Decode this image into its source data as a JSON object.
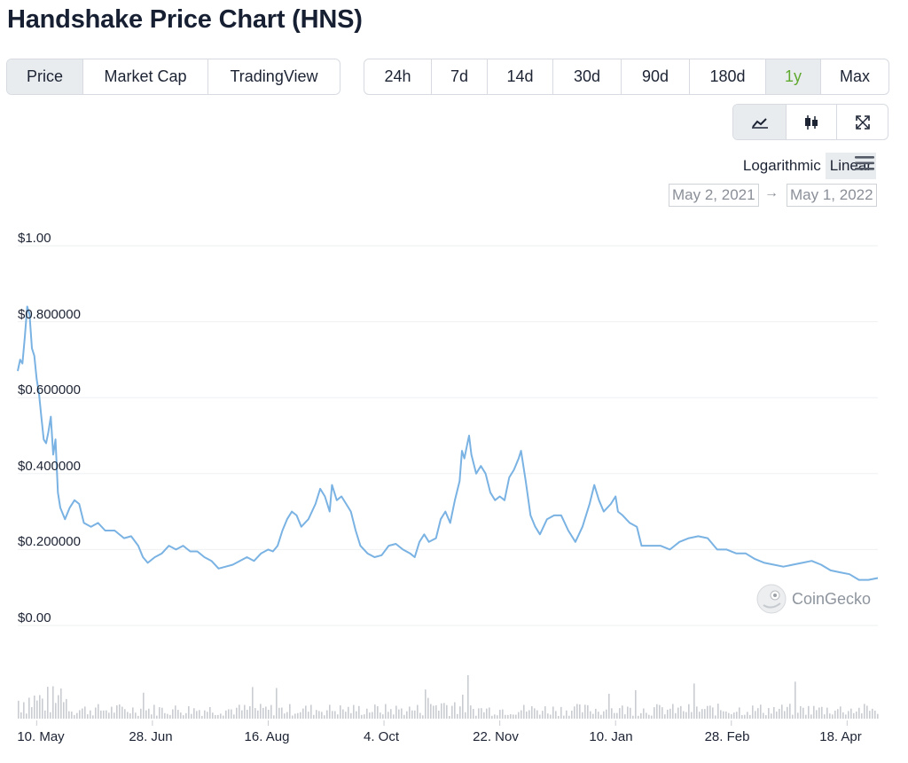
{
  "header": {
    "title": "Handshake Price Chart (HNS)"
  },
  "view_tabs": [
    {
      "label": "Price",
      "active": true
    },
    {
      "label": "Market Cap",
      "active": false
    },
    {
      "label": "TradingView",
      "active": false
    }
  ],
  "range_tabs": [
    {
      "label": "24h"
    },
    {
      "label": "7d"
    },
    {
      "label": "14d"
    },
    {
      "label": "30d"
    },
    {
      "label": "90d"
    },
    {
      "label": "180d"
    },
    {
      "label": "1y",
      "active": true
    },
    {
      "label": "Max"
    }
  ],
  "chart_type_buttons": [
    {
      "icon": "line-chart-icon",
      "active": true
    },
    {
      "icon": "candlestick-icon",
      "active": false
    },
    {
      "icon": "expand-icon",
      "active": false
    }
  ],
  "scale": {
    "log_label": "Logarithmic",
    "linear_label": "Linear",
    "selected": "Linear"
  },
  "date_range": {
    "from": "May 2, 2021",
    "arrow": "→",
    "to": "May 1, 2022"
  },
  "watermark": {
    "text": "CoinGecko"
  },
  "colors": {
    "line": "#7ab3e3",
    "volume": "#c9ccd1",
    "grid": "#eef0f2",
    "active_green": "#5fa92f"
  },
  "chart_data": {
    "type": "line",
    "title": "",
    "xlabel": "",
    "ylabel": "",
    "ylim": [
      0,
      1.0
    ],
    "y_ticks": [
      "$1.00",
      "$0.800000",
      "$0.600000",
      "$0.400000",
      "$0.200000",
      "$0.00"
    ],
    "y_tick_values": [
      1.0,
      0.8,
      0.6,
      0.4,
      0.2,
      0.0
    ],
    "x_tick_labels": [
      "10. May",
      "28. Jun",
      "16. Aug",
      "4. Oct",
      "22. Nov",
      "10. Jan",
      "28. Feb",
      "18. Apr"
    ],
    "x_tick_dates": [
      "2021-05-10",
      "2021-06-28",
      "2021-08-16",
      "2021-10-04",
      "2021-11-22",
      "2022-01-10",
      "2022-02-28",
      "2022-04-18"
    ],
    "x_range": [
      "2021-05-02",
      "2022-05-01"
    ],
    "grid": true,
    "series": [
      {
        "price_points": [
          [
            "2021-05-02",
            0.67
          ],
          [
            "2021-05-03",
            0.7
          ],
          [
            "2021-05-04",
            0.69
          ],
          [
            "2021-05-05",
            0.76
          ],
          [
            "2021-05-06",
            0.84
          ],
          [
            "2021-05-07",
            0.82
          ],
          [
            "2021-05-08",
            0.73
          ],
          [
            "2021-05-09",
            0.71
          ],
          [
            "2021-05-10",
            0.65
          ],
          [
            "2021-05-11",
            0.61
          ],
          [
            "2021-05-12",
            0.55
          ],
          [
            "2021-05-13",
            0.49
          ],
          [
            "2021-05-14",
            0.48
          ],
          [
            "2021-05-15",
            0.51
          ],
          [
            "2021-05-16",
            0.55
          ],
          [
            "2021-05-17",
            0.45
          ],
          [
            "2021-05-18",
            0.49
          ],
          [
            "2021-05-19",
            0.35
          ],
          [
            "2021-05-20",
            0.31
          ],
          [
            "2021-05-22",
            0.28
          ],
          [
            "2021-05-24",
            0.31
          ],
          [
            "2021-05-26",
            0.33
          ],
          [
            "2021-05-28",
            0.32
          ],
          [
            "2021-05-30",
            0.27
          ],
          [
            "2021-06-02",
            0.26
          ],
          [
            "2021-06-05",
            0.27
          ],
          [
            "2021-06-08",
            0.25
          ],
          [
            "2021-06-12",
            0.25
          ],
          [
            "2021-06-16",
            0.23
          ],
          [
            "2021-06-19",
            0.235
          ],
          [
            "2021-06-22",
            0.21
          ],
          [
            "2021-06-24",
            0.18
          ],
          [
            "2021-06-26",
            0.165
          ],
          [
            "2021-06-29",
            0.18
          ],
          [
            "2021-07-02",
            0.19
          ],
          [
            "2021-07-05",
            0.21
          ],
          [
            "2021-07-08",
            0.2
          ],
          [
            "2021-07-11",
            0.21
          ],
          [
            "2021-07-14",
            0.195
          ],
          [
            "2021-07-17",
            0.195
          ],
          [
            "2021-07-20",
            0.18
          ],
          [
            "2021-07-23",
            0.17
          ],
          [
            "2021-07-26",
            0.15
          ],
          [
            "2021-07-29",
            0.155
          ],
          [
            "2021-08-01",
            0.16
          ],
          [
            "2021-08-04",
            0.17
          ],
          [
            "2021-08-07",
            0.18
          ],
          [
            "2021-08-10",
            0.17
          ],
          [
            "2021-08-13",
            0.19
          ],
          [
            "2021-08-16",
            0.2
          ],
          [
            "2021-08-18",
            0.195
          ],
          [
            "2021-08-20",
            0.21
          ],
          [
            "2021-08-22",
            0.25
          ],
          [
            "2021-08-24",
            0.28
          ],
          [
            "2021-08-26",
            0.3
          ],
          [
            "2021-08-28",
            0.29
          ],
          [
            "2021-08-30",
            0.26
          ],
          [
            "2021-09-02",
            0.28
          ],
          [
            "2021-09-05",
            0.32
          ],
          [
            "2021-09-07",
            0.36
          ],
          [
            "2021-09-09",
            0.34
          ],
          [
            "2021-09-11",
            0.3
          ],
          [
            "2021-09-12",
            0.37
          ],
          [
            "2021-09-14",
            0.33
          ],
          [
            "2021-09-16",
            0.34
          ],
          [
            "2021-09-18",
            0.32
          ],
          [
            "2021-09-20",
            0.3
          ],
          [
            "2021-09-22",
            0.25
          ],
          [
            "2021-09-24",
            0.21
          ],
          [
            "2021-09-27",
            0.19
          ],
          [
            "2021-09-30",
            0.18
          ],
          [
            "2021-10-03",
            0.185
          ],
          [
            "2021-10-06",
            0.21
          ],
          [
            "2021-10-09",
            0.215
          ],
          [
            "2021-10-12",
            0.2
          ],
          [
            "2021-10-15",
            0.19
          ],
          [
            "2021-10-17",
            0.18
          ],
          [
            "2021-10-19",
            0.22
          ],
          [
            "2021-10-21",
            0.24
          ],
          [
            "2021-10-23",
            0.22
          ],
          [
            "2021-10-26",
            0.23
          ],
          [
            "2021-10-28",
            0.28
          ],
          [
            "2021-10-30",
            0.3
          ],
          [
            "2021-11-01",
            0.27
          ],
          [
            "2021-11-03",
            0.33
          ],
          [
            "2021-11-05",
            0.38
          ],
          [
            "2021-11-06",
            0.46
          ],
          [
            "2021-11-07",
            0.44
          ],
          [
            "2021-11-08",
            0.47
          ],
          [
            "2021-11-09",
            0.5
          ],
          [
            "2021-11-10",
            0.45
          ],
          [
            "2021-11-12",
            0.4
          ],
          [
            "2021-11-14",
            0.42
          ],
          [
            "2021-11-16",
            0.4
          ],
          [
            "2021-11-18",
            0.35
          ],
          [
            "2021-11-20",
            0.33
          ],
          [
            "2021-11-22",
            0.34
          ],
          [
            "2021-11-24",
            0.33
          ],
          [
            "2021-11-26",
            0.39
          ],
          [
            "2021-11-28",
            0.41
          ],
          [
            "2021-11-30",
            0.44
          ],
          [
            "2021-12-01",
            0.46
          ],
          [
            "2021-12-03",
            0.38
          ],
          [
            "2021-12-05",
            0.29
          ],
          [
            "2021-12-07",
            0.26
          ],
          [
            "2021-12-09",
            0.24
          ],
          [
            "2021-12-12",
            0.28
          ],
          [
            "2021-12-15",
            0.29
          ],
          [
            "2021-12-18",
            0.29
          ],
          [
            "2021-12-21",
            0.25
          ],
          [
            "2021-12-24",
            0.22
          ],
          [
            "2021-12-27",
            0.26
          ],
          [
            "2021-12-30",
            0.32
          ],
          [
            "2022-01-01",
            0.37
          ],
          [
            "2022-01-03",
            0.33
          ],
          [
            "2022-01-05",
            0.3
          ],
          [
            "2022-01-08",
            0.32
          ],
          [
            "2022-01-10",
            0.34
          ],
          [
            "2022-01-11",
            0.3
          ],
          [
            "2022-01-13",
            0.29
          ],
          [
            "2022-01-16",
            0.27
          ],
          [
            "2022-01-19",
            0.26
          ],
          [
            "2022-01-21",
            0.21
          ],
          [
            "2022-01-25",
            0.21
          ],
          [
            "2022-01-29",
            0.21
          ],
          [
            "2022-02-02",
            0.2
          ],
          [
            "2022-02-06",
            0.22
          ],
          [
            "2022-02-10",
            0.23
          ],
          [
            "2022-02-14",
            0.235
          ],
          [
            "2022-02-18",
            0.23
          ],
          [
            "2022-02-22",
            0.2
          ],
          [
            "2022-02-26",
            0.2
          ],
          [
            "2022-03-02",
            0.19
          ],
          [
            "2022-03-06",
            0.19
          ],
          [
            "2022-03-10",
            0.175
          ],
          [
            "2022-03-14",
            0.165
          ],
          [
            "2022-03-18",
            0.16
          ],
          [
            "2022-03-22",
            0.155
          ],
          [
            "2022-03-26",
            0.16
          ],
          [
            "2022-03-30",
            0.165
          ],
          [
            "2022-04-03",
            0.17
          ],
          [
            "2022-04-07",
            0.16
          ],
          [
            "2022-04-11",
            0.145
          ],
          [
            "2022-04-15",
            0.14
          ],
          [
            "2022-04-19",
            0.135
          ],
          [
            "2022-04-23",
            0.12
          ],
          [
            "2022-04-27",
            0.12
          ],
          [
            "2022-05-01",
            0.125
          ]
        ]
      }
    ]
  }
}
